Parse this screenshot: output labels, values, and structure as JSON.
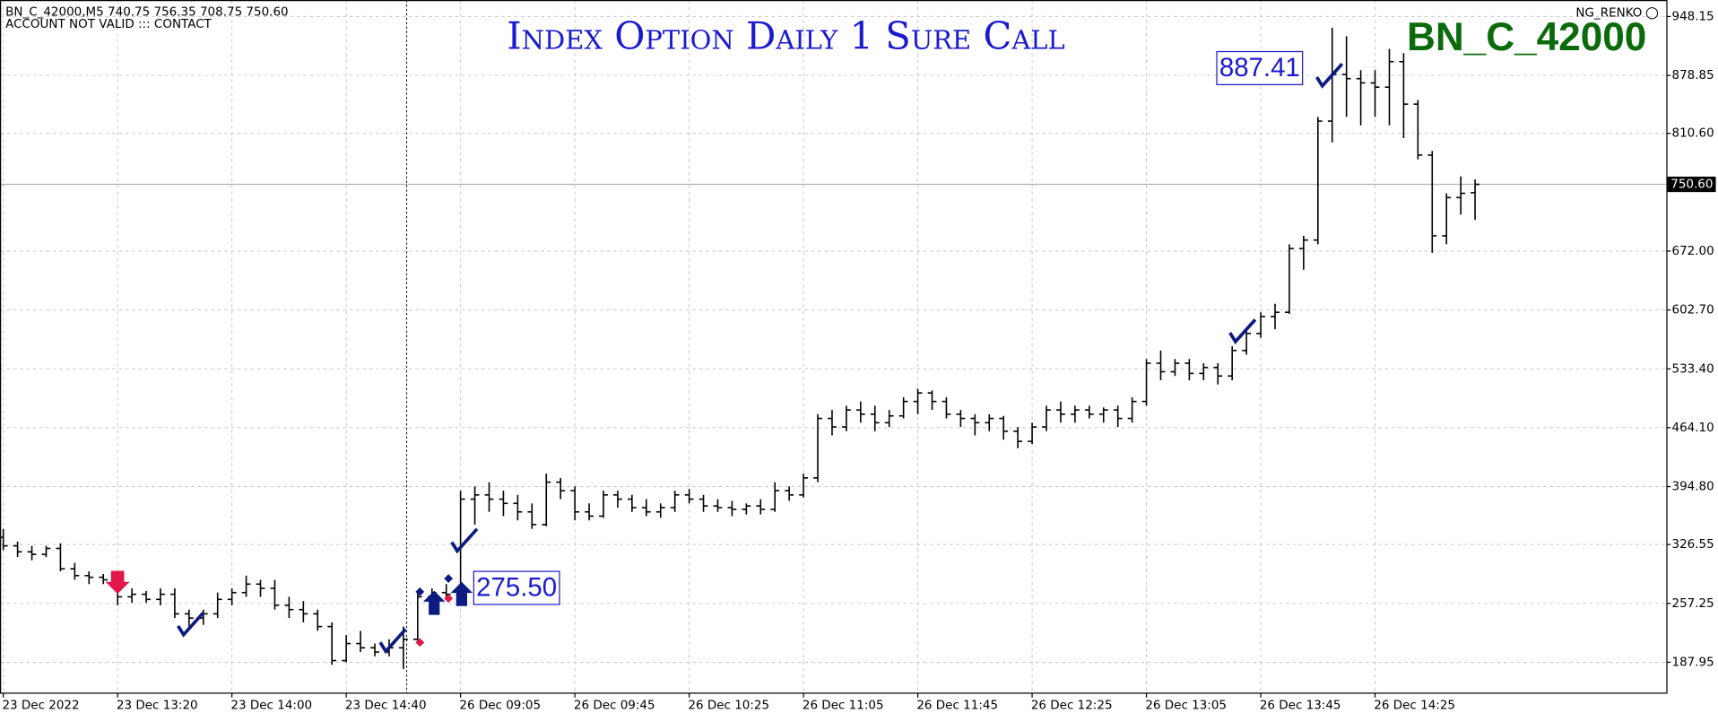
{
  "chart_data": {
    "type": "ohlc",
    "title": "Index Option Daily 1 Sure Call",
    "watermark": "BN_C_42000",
    "header": [
      "BN_C_42000,M5  740.75 756.35 708.75 750.60",
      "ACCOUNT NOT VALID ::: CONTACT"
    ],
    "indicator": "NG_RENKO",
    "color": "#000000",
    "grid": true,
    "ylim": [
      151.6,
      967.6
    ],
    "yticks": [
      948.15,
      878.85,
      {
        "value": 810.6,
        "label": "810.60"
      },
      {
        "value": 672,
        "label": "672.00"
      },
      {
        "value": 602.7,
        "label": "602.70"
      },
      {
        "value": 533.4,
        "label": "533.40"
      },
      {
        "value": 464.1,
        "label": "464.10"
      },
      {
        "value": 394.8,
        "label": "394.80"
      },
      326.55,
      257.25,
      187.95
    ],
    "current_price": {
      "value": 750.6,
      "label": "750.60"
    },
    "annotations": [
      {
        "value": 275.5,
        "label": "275.50"
      },
      {
        "value": 887.41,
        "label": "887.41"
      }
    ],
    "categories": [
      "23 Dec 2022",
      null,
      null,
      null,
      null,
      null,
      null,
      null,
      "23 Dec 13:20",
      null,
      null,
      null,
      null,
      null,
      null,
      null,
      "23 Dec 14:00",
      null,
      null,
      null,
      null,
      null,
      null,
      null,
      "23 Dec 14:40",
      null,
      null,
      null,
      null,
      null,
      null,
      null,
      "26 Dec 09:05",
      null,
      null,
      null,
      null,
      null,
      null,
      null,
      "26 Dec 09:45",
      null,
      null,
      null,
      null,
      null,
      null,
      null,
      "26 Dec 10:25",
      null,
      null,
      null,
      null,
      null,
      null,
      null,
      "26 Dec 11:05",
      null,
      null,
      null,
      null,
      null,
      null,
      null,
      "26 Dec 11:45",
      null,
      null,
      null,
      null,
      null,
      null,
      null,
      "26 Dec 12:25",
      null,
      null,
      null,
      null,
      null,
      null,
      null,
      "26 Dec 13:05",
      null,
      null,
      null,
      null,
      null,
      null,
      null,
      "26 Dec 13:45",
      null,
      null,
      null,
      null,
      null,
      null,
      null,
      "26 Dec 14:25",
      null,
      null,
      null,
      null,
      null,
      null,
      null
    ],
    "ohlc": [
      [
        335,
        345,
        320,
        325
      ],
      [
        325,
        330,
        312,
        318
      ],
      [
        318,
        325,
        308,
        315
      ],
      [
        315,
        325,
        312,
        322
      ],
      [
        322,
        328,
        295,
        298
      ],
      [
        298,
        305,
        285,
        290
      ],
      [
        290,
        295,
        280,
        288
      ],
      [
        288,
        292,
        280,
        285
      ],
      [
        285,
        290,
        255,
        265
      ],
      [
        265,
        275,
        258,
        268
      ],
      [
        268,
        272,
        258,
        262
      ],
      [
        262,
        275,
        255,
        268
      ],
      [
        268,
        275,
        240,
        245
      ],
      [
        245,
        250,
        230,
        240
      ],
      [
        240,
        250,
        232,
        245
      ],
      [
        245,
        270,
        240,
        262
      ],
      [
        262,
        275,
        255,
        270
      ],
      [
        270,
        290,
        265,
        280
      ],
      [
        280,
        285,
        265,
        275
      ],
      [
        275,
        285,
        250,
        255
      ],
      [
        255,
        265,
        240,
        250
      ],
      [
        250,
        260,
        235,
        245
      ],
      [
        245,
        250,
        225,
        230
      ],
      [
        230,
        235,
        185,
        190
      ],
      [
        190,
        220,
        188,
        210
      ],
      [
        210,
        225,
        200,
        205
      ],
      [
        205,
        210,
        195,
        200
      ],
      [
        200,
        215,
        195,
        205
      ],
      [
        205,
        230,
        180,
        215
      ],
      [
        215,
        270,
        210,
        265
      ],
      [
        265,
        275,
        255,
        270
      ],
      [
        270,
        280,
        262,
        268
      ],
      [
        268,
        390,
        265,
        380
      ],
      [
        380,
        395,
        350,
        385
      ],
      [
        385,
        400,
        365,
        380
      ],
      [
        380,
        390,
        360,
        375
      ],
      [
        375,
        385,
        355,
        365
      ],
      [
        365,
        375,
        345,
        350
      ],
      [
        350,
        410,
        348,
        400
      ],
      [
        400,
        405,
        380,
        390
      ],
      [
        390,
        395,
        355,
        365
      ],
      [
        365,
        375,
        355,
        360
      ],
      [
        360,
        390,
        358,
        385
      ],
      [
        385,
        390,
        370,
        380
      ],
      [
        380,
        385,
        365,
        370
      ],
      [
        370,
        380,
        360,
        365
      ],
      [
        365,
        375,
        358,
        370
      ],
      [
        370,
        390,
        365,
        385
      ],
      [
        385,
        392,
        375,
        380
      ],
      [
        380,
        385,
        365,
        372
      ],
      [
        372,
        380,
        365,
        370
      ],
      [
        370,
        378,
        360,
        368
      ],
      [
        368,
        375,
        362,
        372
      ],
      [
        372,
        380,
        362,
        368
      ],
      [
        368,
        400,
        365,
        390
      ],
      [
        390,
        395,
        378,
        385
      ],
      [
        385,
        410,
        382,
        405
      ],
      [
        405,
        480,
        400,
        475
      ],
      [
        475,
        485,
        455,
        465
      ],
      [
        465,
        490,
        460,
        485
      ],
      [
        485,
        495,
        470,
        480
      ],
      [
        480,
        490,
        460,
        470
      ],
      [
        470,
        485,
        465,
        478
      ],
      [
        478,
        500,
        475,
        495
      ],
      [
        495,
        510,
        480,
        505
      ],
      [
        505,
        508,
        485,
        495
      ],
      [
        495,
        500,
        475,
        480
      ],
      [
        480,
        485,
        465,
        475
      ],
      [
        475,
        480,
        455,
        470
      ],
      [
        470,
        480,
        460,
        475
      ],
      [
        475,
        478,
        450,
        460
      ],
      [
        460,
        465,
        440,
        448
      ],
      [
        448,
        470,
        445,
        465
      ],
      [
        465,
        490,
        460,
        485
      ],
      [
        485,
        495,
        470,
        480
      ],
      [
        480,
        490,
        470,
        485
      ],
      [
        485,
        490,
        475,
        480
      ],
      [
        480,
        488,
        470,
        485
      ],
      [
        485,
        490,
        465,
        475
      ],
      [
        475,
        500,
        470,
        495
      ],
      [
        495,
        545,
        490,
        540
      ],
      [
        540,
        555,
        520,
        530
      ],
      [
        530,
        545,
        525,
        540
      ],
      [
        540,
        545,
        520,
        528
      ],
      [
        528,
        540,
        520,
        535
      ],
      [
        535,
        540,
        515,
        525
      ],
      [
        525,
        560,
        520,
        555
      ],
      [
        555,
        580,
        550,
        575
      ],
      [
        575,
        600,
        570,
        595
      ],
      [
        595,
        610,
        580,
        600
      ],
      [
        600,
        680,
        598,
        675
      ],
      [
        675,
        690,
        650,
        685
      ],
      [
        685,
        830,
        680,
        825
      ],
      [
        825,
        935,
        800,
        880
      ],
      [
        880,
        925,
        830,
        875
      ],
      [
        875,
        885,
        820,
        870
      ],
      [
        870,
        885,
        830,
        865
      ],
      [
        865,
        910,
        820,
        895
      ],
      [
        895,
        905,
        805,
        845
      ],
      [
        845,
        850,
        780,
        785
      ],
      [
        785,
        790,
        670,
        690
      ],
      [
        690,
        740,
        680,
        735
      ],
      [
        735,
        760,
        715,
        740
      ],
      [
        740.75,
        756.35,
        708.75,
        750.6
      ]
    ]
  }
}
